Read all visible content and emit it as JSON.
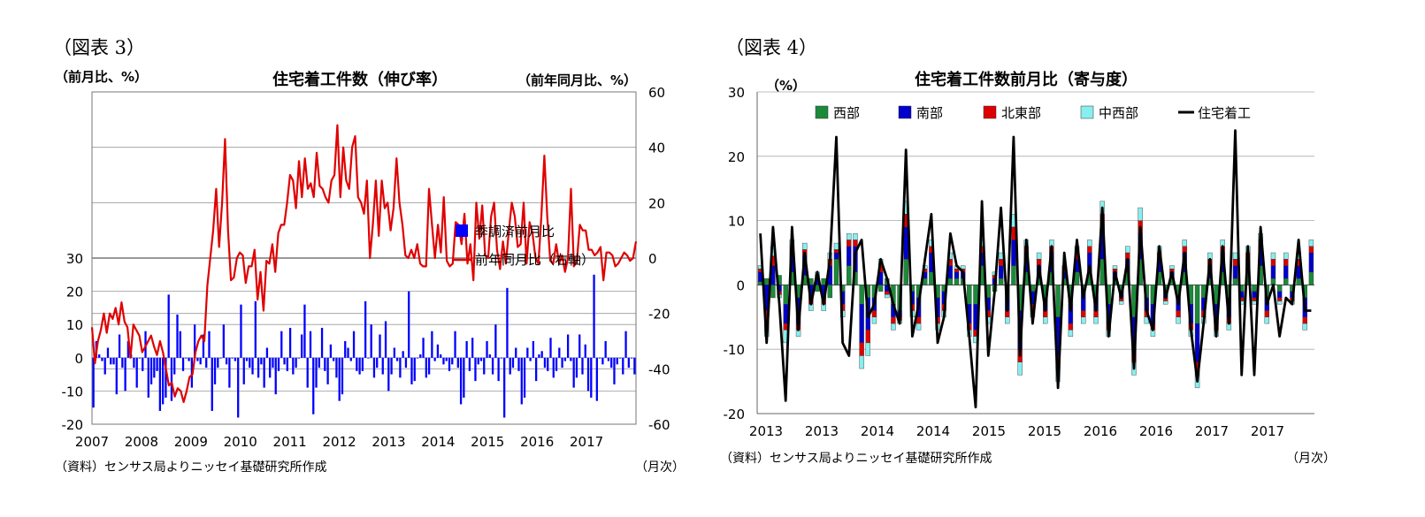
{
  "fig3": {
    "label": "（図表 3）",
    "unit_left": "（前月比、%）",
    "unit_right": "（前年同月比、%）",
    "source": "（資料）センサス局よりニッセイ基礎研究所作成",
    "xunit": "（月次）",
    "chart_data": {
      "type": "bar",
      "title": "住宅着工件数（伸び率）",
      "xlabel": "",
      "ylabel_left": "前月比、%",
      "ylabel_right": "前年同月比、%",
      "x_tick_labels": [
        "2007",
        "2008",
        "2009",
        "2010",
        "2011",
        "2012",
        "2013",
        "2014",
        "2015",
        "2016",
        "2017"
      ],
      "y_left_ticks": [
        30,
        20,
        10,
        0,
        -10,
        -20
      ],
      "y_right_ticks": [
        60,
        40,
        20,
        0,
        -20,
        -40,
        -60
      ],
      "ylim_left": [
        -20,
        80
      ],
      "ylim_right": [
        -60,
        60
      ],
      "grid": true,
      "legend_position": "right-middle",
      "series": [
        {
          "name": "季調済前月比",
          "axis": "left",
          "type": "bar",
          "color": "#0000ff",
          "values": [
            -15,
            5,
            1,
            -1,
            -5,
            3,
            -2,
            -2,
            -11,
            7,
            -3,
            -10,
            5,
            1,
            -3,
            -9,
            0,
            -4,
            8,
            -12,
            -8,
            -6,
            -4,
            -16,
            -14,
            -12,
            19,
            -13,
            -5,
            13,
            8,
            -4,
            0,
            -1,
            -9,
            10,
            -1,
            -2,
            7,
            -3,
            8,
            -16,
            -8,
            -3,
            0,
            10,
            -2,
            -9,
            0,
            -1,
            -18,
            16,
            -8,
            -1,
            -3,
            -5,
            17,
            -6,
            -2,
            -9,
            3,
            -6,
            -3,
            -11,
            -4,
            8,
            -2,
            -4,
            9,
            -5,
            -3,
            0,
            7,
            16,
            -9,
            8,
            -17,
            -9,
            -3,
            9,
            -4,
            -8,
            4,
            -1,
            -6,
            -13,
            -11,
            5,
            3,
            -1,
            8,
            -4,
            -5,
            -4,
            17,
            0,
            10,
            -6,
            -3,
            7,
            -5,
            11,
            -10,
            -5,
            3,
            -1,
            -6,
            2,
            -3,
            20,
            -8,
            -7,
            0,
            1,
            6,
            -6,
            -5,
            8,
            -1,
            4,
            1,
            -2,
            -1,
            -4,
            -2,
            8,
            -3,
            -14,
            -12,
            5,
            -4,
            6,
            -7,
            -2,
            -1,
            -5,
            5,
            1,
            -5,
            10,
            -7,
            0,
            -18,
            21,
            -5,
            -3,
            3,
            -4,
            -14,
            -12,
            3,
            -1,
            5,
            -7,
            1,
            2,
            -3,
            -4,
            6,
            -6,
            -4,
            3,
            -3,
            -1,
            7,
            -1,
            -9,
            -6,
            7,
            -5,
            4,
            -10,
            -12,
            25,
            -13,
            0,
            -2,
            5,
            -1,
            -3,
            -8,
            -2,
            0,
            -5,
            8,
            -3,
            0,
            -5
          ]
        },
        {
          "name": "前年同月比（右軸）",
          "axis": "right",
          "type": "line",
          "color": "#e00000",
          "values": [
            -25,
            -38,
            -30,
            -26,
            -20,
            -27,
            -20,
            -22,
            -18,
            -24,
            -16,
            -23,
            -25,
            -36,
            -24,
            -26,
            -28,
            -34,
            -32,
            -30,
            -28,
            -32,
            -35,
            -30,
            -34,
            -40,
            -46,
            -45,
            -50,
            -47,
            -48,
            -52,
            -48,
            -43,
            -42,
            -34,
            -30,
            -28,
            -30,
            -10,
            0,
            10,
            25,
            4,
            20,
            43,
            10,
            -8,
            -7,
            0,
            2,
            1,
            -9,
            -3,
            -3,
            3,
            -15,
            -5,
            -19,
            -1,
            -2,
            5,
            -5,
            9,
            12,
            12,
            20,
            30,
            28,
            18,
            35,
            22,
            36,
            25,
            27,
            22,
            38,
            26,
            25,
            22,
            20,
            28,
            30,
            48,
            22,
            40,
            28,
            25,
            40,
            44,
            22,
            20,
            16,
            28,
            0,
            12,
            28,
            8,
            28,
            18,
            20,
            10,
            18,
            36,
            20,
            12,
            1,
            0,
            3,
            0,
            5,
            -2,
            -3,
            -3,
            25,
            12,
            0,
            12,
            2,
            22,
            -1,
            -3,
            -2,
            13,
            12,
            5,
            16,
            -2,
            5,
            -8,
            20,
            7,
            19,
            1,
            0,
            15,
            20,
            3,
            -4,
            6,
            -2,
            10,
            20,
            15,
            4,
            5,
            20,
            -2,
            13,
            9,
            0,
            -2,
            15,
            37,
            15,
            -1,
            -2,
            5,
            -2,
            1,
            -5,
            0,
            25,
            -3,
            -1,
            12,
            10,
            10,
            3,
            3,
            1,
            2,
            4,
            -8,
            2,
            2,
            1,
            -3,
            -2,
            0,
            2,
            1,
            -1,
            0,
            6
          ]
        }
      ]
    }
  },
  "fig4": {
    "label": "（図表 4）",
    "unit_left": "（%）",
    "source": "（資料）センサス局よりニッセイ基礎研究所作成",
    "xunit": "（月次）",
    "chart_data": {
      "type": "bar",
      "stacked": true,
      "title": "住宅着工件数前月比（寄与度）",
      "xlabel": "",
      "ylabel": "%",
      "x_tick_labels": [
        "2013",
        "2013",
        "2014",
        "2014",
        "2015",
        "2015",
        "2016",
        "2016",
        "2017",
        "2017"
      ],
      "y_ticks": [
        30,
        20,
        10,
        0,
        -10,
        -20
      ],
      "ylim": [
        -20,
        30
      ],
      "grid": true,
      "legend_position": "top",
      "series": [
        {
          "name": "西部",
          "type": "bar",
          "color": "#1a8a3a",
          "values": [
            0.5,
            1,
            -2,
            1.5,
            -3,
            2,
            -2,
            1.5,
            1,
            -1,
            1,
            -2,
            4,
            -1,
            3,
            2,
            -3,
            -2,
            -2,
            -1,
            1,
            -3,
            -4,
            4,
            -1,
            -2,
            1,
            2,
            -2,
            -1,
            1,
            1,
            1,
            -3,
            -3,
            3,
            -2,
            -1,
            1,
            -2,
            3,
            -4,
            2,
            -1,
            1,
            -2,
            2,
            -5,
            1,
            -3,
            2,
            -1,
            2,
            -2,
            4,
            -3,
            1,
            -1,
            2,
            -5,
            4,
            -2,
            -3,
            2,
            -1,
            1,
            -2,
            2,
            -3,
            -6,
            -2,
            1,
            -3,
            2,
            -2,
            1,
            -1,
            2,
            -1,
            3,
            -2,
            1,
            -1,
            1,
            -1,
            1,
            -2,
            2
          ]
        },
        {
          "name": "南部",
          "type": "bar",
          "color": "#0000cc",
          "values": [
            1.5,
            -4,
            3,
            -1,
            -3,
            3,
            -4,
            3,
            -2,
            1,
            -2,
            3,
            1,
            -2,
            3,
            4,
            -6,
            -5,
            -2,
            2,
            -1,
            -2,
            -1,
            5,
            -2,
            -3,
            1,
            3,
            -3,
            -2,
            2,
            1,
            1,
            -3,
            -4,
            2,
            -2,
            1,
            2,
            -2,
            4,
            -6,
            3,
            -2,
            2,
            -2,
            3,
            -6,
            1,
            -3,
            2,
            -3,
            3,
            -2,
            5,
            -3,
            1,
            -1,
            2,
            -5,
            4,
            -2,
            -3,
            2,
            -1,
            1,
            -2,
            3,
            -3,
            -6,
            -2,
            2,
            -3,
            3,
            -3,
            2,
            -1,
            2,
            -1,
            3,
            -2,
            2,
            -1,
            2,
            -1,
            2,
            -3,
            3
          ]
        },
        {
          "name": "北東部",
          "type": "bar",
          "color": "#dd0000",
          "values": [
            0.5,
            -2,
            1.5,
            -0.5,
            -1,
            1,
            -1,
            1,
            -1,
            0.5,
            -1,
            1,
            0.5,
            -1,
            1,
            1,
            -2,
            -2,
            -1,
            1,
            -0.5,
            -1,
            -0.5,
            2,
            -1,
            -1,
            0.5,
            1,
            -1,
            -1,
            1,
            0.5,
            0.5,
            -1,
            -1,
            1,
            -1,
            0.5,
            1,
            -1,
            2,
            -2,
            1,
            -1,
            1,
            -1,
            1,
            -2,
            0.5,
            -1,
            1,
            -1,
            1,
            -1,
            2,
            -1,
            0.5,
            -0.5,
            1,
            -2,
            2,
            -1,
            -1,
            1,
            -0.5,
            0.5,
            -1,
            1,
            -1,
            -2,
            -1,
            1,
            -1,
            1,
            -1,
            1,
            -0.5,
            1,
            -0.5,
            1,
            -1,
            1,
            -0.5,
            1,
            -0.5,
            1,
            -1,
            1
          ]
        },
        {
          "name": "中西部",
          "type": "bar",
          "color": "#88eeee",
          "values": [
            0.5,
            -2,
            1.5,
            -0.5,
            -2,
            1,
            -1,
            1,
            -1,
            0.5,
            -1,
            1,
            1,
            -1,
            1,
            1,
            -2,
            -2,
            -1,
            1,
            -0.5,
            -1,
            -0.5,
            2,
            -1,
            -1,
            0.5,
            1,
            -1,
            -1,
            1,
            0.5,
            0.5,
            -1,
            -1,
            1,
            -1,
            0.5,
            1,
            -1,
            2,
            -2,
            1,
            -1,
            1,
            -1,
            1,
            -2,
            0.5,
            -1,
            1,
            -1,
            1,
            -1,
            2,
            -1,
            0.5,
            -0.5,
            1,
            -2,
            2,
            -1,
            -1,
            1,
            -0.5,
            0.5,
            -1,
            1,
            -1,
            -2,
            -1,
            1,
            -1,
            1,
            -1,
            1,
            -0.5,
            1,
            -0.5,
            1,
            -1,
            1,
            -0.5,
            1,
            -0.5,
            1,
            -1,
            1
          ]
        },
        {
          "name": "住宅着工",
          "type": "line",
          "color": "#000000",
          "values": [
            8,
            -9,
            9,
            -3,
            -18,
            9,
            -7,
            5,
            -3,
            2,
            -3,
            4,
            23,
            -9,
            -11,
            5,
            7,
            -5,
            -3,
            4,
            1,
            -3,
            -6,
            21,
            -8,
            -3,
            4,
            11,
            -9,
            -5,
            8,
            3,
            2,
            -8,
            -19,
            13,
            -11,
            -1,
            12,
            -4,
            23,
            -11,
            7,
            -6,
            3,
            -4,
            6,
            -16,
            5,
            -4,
            7,
            -2,
            3,
            -4,
            12,
            -8,
            2,
            -2,
            4,
            -13,
            9,
            -4,
            -7,
            6,
            -2,
            2,
            -3,
            5,
            -7,
            -15,
            -6,
            4,
            -8,
            6,
            -6,
            24,
            -14,
            6,
            -14,
            9,
            -3,
            0,
            -8,
            -2,
            -3,
            7,
            -4,
            -4
          ]
        }
      ]
    }
  }
}
